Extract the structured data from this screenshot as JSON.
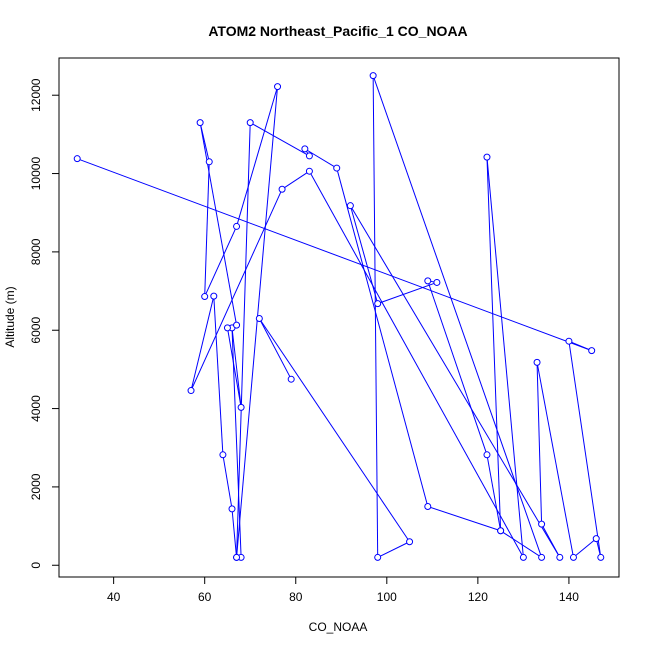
{
  "chart_data": {
    "type": "line",
    "title": "ATOM2 Northeast_Pacific_1 CO_NOAA",
    "xlabel": "CO_NOAA",
    "ylabel": "Altitude (m)",
    "xlim": [
      28,
      151
    ],
    "ylim": [
      -300,
      12950
    ],
    "xticks": [
      40,
      60,
      80,
      100,
      120,
      140
    ],
    "yticks": [
      0,
      2000,
      4000,
      6000,
      8000,
      10000,
      12000
    ],
    "grid": false,
    "marker": "open-circle",
    "series": [
      {
        "color": "#0000ff",
        "x": [
          32,
          145,
          140,
          147,
          146,
          141,
          133,
          134,
          138,
          92,
          98,
          111,
          109,
          122,
          125,
          122,
          130,
          83,
          77,
          57,
          62,
          64,
          66,
          67,
          68,
          66,
          68,
          65,
          67,
          59,
          61,
          60,
          67,
          76,
          67,
          70,
          83,
          82,
          89,
          109,
          125,
          134,
          97,
          98,
          105,
          72,
          79
        ],
        "y": [
          10380,
          5480,
          5720,
          200,
          680,
          200,
          5180,
          1050,
          200,
          9180,
          6680,
          7220,
          7260,
          2820,
          880,
          10420,
          200,
          10060,
          9600,
          4460,
          6870,
          2820,
          1440,
          200,
          200,
          6060,
          4030,
          6060,
          6130,
          11300,
          10300,
          6860,
          8650,
          12220,
          200,
          11300,
          10450,
          10630,
          10140,
          1500,
          880,
          200,
          12500,
          200,
          600,
          6300,
          4750
        ]
      }
    ]
  }
}
